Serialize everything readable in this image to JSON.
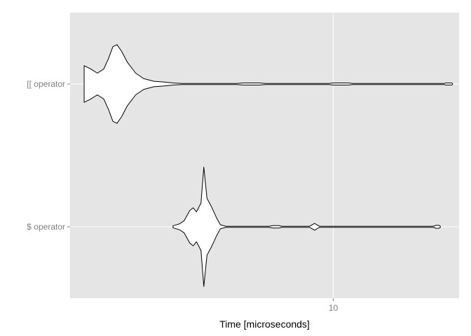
{
  "chart_data": {
    "type": "violin",
    "orientation": "horizontal",
    "title": "",
    "xlabel": "Time [microseconds]",
    "ylabel": "",
    "x_scale": "log",
    "x_ticks": [
      10
    ],
    "x_tick_labels": [
      "10"
    ],
    "xlim": [
      3.1,
      17.5
    ],
    "grid": true,
    "legend": "none",
    "categories": [
      "[[ operator",
      "$ operator"
    ],
    "series": [
      {
        "category": "[[ operator",
        "profile": [
          [
            3.3,
            0.27
          ],
          [
            3.4,
            0.22
          ],
          [
            3.5,
            0.16
          ],
          [
            3.6,
            0.22
          ],
          [
            3.68,
            0.38
          ],
          [
            3.75,
            0.55
          ],
          [
            3.82,
            0.58
          ],
          [
            3.9,
            0.48
          ],
          [
            4.0,
            0.32
          ],
          [
            4.15,
            0.16
          ],
          [
            4.3,
            0.08
          ],
          [
            4.5,
            0.04
          ],
          [
            4.7,
            0.03
          ],
          [
            4.9,
            0.015
          ],
          [
            5.1,
            0.008
          ],
          [
            6.5,
            0.008
          ],
          [
            6.7,
            0.016
          ],
          [
            7.2,
            0.016
          ],
          [
            7.4,
            0.008
          ],
          [
            9.8,
            0.008
          ],
          [
            10.0,
            0.016
          ],
          [
            10.7,
            0.016
          ],
          [
            10.9,
            0.008
          ],
          [
            16.4,
            0.008
          ],
          [
            16.5,
            0.016
          ],
          [
            16.9,
            0.016
          ],
          [
            17.0,
            0.008
          ]
        ]
      },
      {
        "category": "$ operator",
        "profile": [
          [
            4.9,
            0.015
          ],
          [
            5.05,
            0.045
          ],
          [
            5.15,
            0.09
          ],
          [
            5.28,
            0.24
          ],
          [
            5.36,
            0.28
          ],
          [
            5.44,
            0.22
          ],
          [
            5.55,
            0.35
          ],
          [
            5.62,
            0.88
          ],
          [
            5.7,
            0.42
          ],
          [
            5.82,
            0.29
          ],
          [
            5.95,
            0.13
          ],
          [
            6.05,
            0.03
          ],
          [
            6.2,
            0.008
          ],
          [
            7.5,
            0.008
          ],
          [
            7.65,
            0.018
          ],
          [
            7.85,
            0.018
          ],
          [
            7.95,
            0.008
          ],
          [
            9.0,
            0.008
          ],
          [
            9.2,
            0.05
          ],
          [
            9.4,
            0.008
          ],
          [
            15.6,
            0.008
          ],
          [
            15.8,
            0.022
          ],
          [
            16.0,
            0.022
          ],
          [
            16.1,
            0.008
          ]
        ]
      }
    ]
  }
}
